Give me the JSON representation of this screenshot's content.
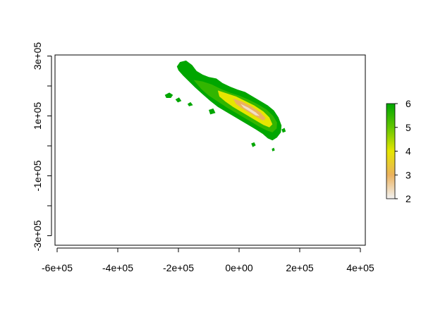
{
  "chart_data": {
    "type": "heatmap",
    "title": "",
    "xlabel": "",
    "ylabel": "",
    "x_ticks": [
      "-6e+05",
      "-4e+05",
      "-2e+05",
      "0e+00",
      "2e+05",
      "4e+05"
    ],
    "x_tick_values": [
      -600000,
      -400000,
      -200000,
      0,
      200000,
      400000
    ],
    "y_ticks": [
      "-3e+05",
      "-1e+05",
      "1e+05",
      "3e+05"
    ],
    "y_tick_values": [
      -300000,
      -100000,
      100000,
      300000
    ],
    "y_minor_tick_values": [
      -200000,
      0,
      200000
    ],
    "xlim": [
      -600000,
      420000
    ],
    "ylim": [
      -320000,
      310000
    ],
    "grid": false,
    "legend": {
      "placement": "right",
      "ticks": [
        "2",
        "3",
        "4",
        "5",
        "6"
      ],
      "tick_values": [
        2,
        3,
        4,
        5,
        6
      ],
      "range": [
        2,
        6
      ],
      "colors": [
        "#F2F2F2",
        "#EBB25E",
        "#E6E600",
        "#63C600",
        "#00A600"
      ]
    },
    "colors": {
      "high": "#00A600",
      "upper": "#3DB800",
      "mid": "#CDD400",
      "low": "#E8B968",
      "lowest": "#F0CFC0"
    },
    "regions": [
      {
        "level": 6,
        "polygon": [
          [
            -205000,
            265000
          ],
          [
            -195000,
            280000
          ],
          [
            -175000,
            285000
          ],
          [
            -155000,
            270000
          ],
          [
            -140000,
            250000
          ],
          [
            -120000,
            238000
          ],
          [
            -100000,
            230000
          ],
          [
            -75000,
            225000
          ],
          [
            -55000,
            210000
          ],
          [
            -30000,
            198000
          ],
          [
            -5000,
            188000
          ],
          [
            20000,
            180000
          ],
          [
            45000,
            165000
          ],
          [
            70000,
            150000
          ],
          [
            95000,
            135000
          ],
          [
            115000,
            118000
          ],
          [
            130000,
            95000
          ],
          [
            140000,
            68000
          ],
          [
            138000,
            45000
          ],
          [
            125000,
            28000
          ],
          [
            110000,
            18000
          ],
          [
            95000,
            25000
          ],
          [
            78000,
            40000
          ],
          [
            55000,
            55000
          ],
          [
            30000,
            70000
          ],
          [
            5000,
            85000
          ],
          [
            -20000,
            100000
          ],
          [
            -45000,
            115000
          ],
          [
            -70000,
            130000
          ],
          [
            -95000,
            150000
          ],
          [
            -120000,
            172000
          ],
          [
            -145000,
            195000
          ],
          [
            -165000,
            215000
          ],
          [
            -185000,
            235000
          ],
          [
            -200000,
            252000
          ]
        ]
      },
      {
        "level": 5.5,
        "polygon": [
          [
            -150000,
            220000
          ],
          [
            -120000,
            215000
          ],
          [
            -90000,
            205000
          ],
          [
            -60000,
            190000
          ],
          [
            -30000,
            178000
          ],
          [
            0,
            168000
          ],
          [
            30000,
            155000
          ],
          [
            60000,
            140000
          ],
          [
            90000,
            122000
          ],
          [
            112000,
            100000
          ],
          [
            125000,
            78000
          ],
          [
            124000,
            58000
          ],
          [
            110000,
            45000
          ],
          [
            90000,
            52000
          ],
          [
            65000,
            65000
          ],
          [
            40000,
            80000
          ],
          [
            15000,
            95000
          ],
          [
            -10000,
            110000
          ],
          [
            -40000,
            128000
          ],
          [
            -70000,
            148000
          ],
          [
            -100000,
            168000
          ],
          [
            -125000,
            190000
          ]
        ]
      },
      {
        "level": 4,
        "polygon": [
          [
            -70000,
            185000
          ],
          [
            -40000,
            175000
          ],
          [
            -10000,
            165000
          ],
          [
            20000,
            150000
          ],
          [
            50000,
            135000
          ],
          [
            80000,
            115000
          ],
          [
            100000,
            95000
          ],
          [
            110000,
            72000
          ],
          [
            100000,
            62000
          ],
          [
            80000,
            70000
          ],
          [
            55000,
            85000
          ],
          [
            30000,
            100000
          ],
          [
            5000,
            115000
          ],
          [
            -20000,
            130000
          ],
          [
            -45000,
            148000
          ],
          [
            -65000,
            165000
          ]
        ]
      },
      {
        "level": 3,
        "polygon": [
          [
            -20000,
            158000
          ],
          [
            10000,
            148000
          ],
          [
            40000,
            132000
          ],
          [
            70000,
            112000
          ],
          [
            88000,
            92000
          ],
          [
            80000,
            84000
          ],
          [
            60000,
            95000
          ],
          [
            35000,
            110000
          ],
          [
            10000,
            125000
          ],
          [
            -10000,
            140000
          ]
        ]
      },
      {
        "level": 2.3,
        "polygon": [
          [
            5000,
            140000
          ],
          [
            30000,
            128000
          ],
          [
            55000,
            112000
          ],
          [
            68000,
            100000
          ],
          [
            55000,
            102000
          ],
          [
            35000,
            115000
          ],
          [
            15000,
            128000
          ]
        ]
      },
      {
        "level": 6,
        "polygon": [
          [
            -245000,
            170000
          ],
          [
            -230000,
            178000
          ],
          [
            -218000,
            170000
          ],
          [
            -225000,
            160000
          ],
          [
            -240000,
            160000
          ]
        ]
      },
      {
        "level": 6,
        "polygon": [
          [
            -210000,
            155000
          ],
          [
            -198000,
            162000
          ],
          [
            -190000,
            150000
          ],
          [
            -202000,
            145000
          ]
        ]
      },
      {
        "level": 6,
        "polygon": [
          [
            -170000,
            140000
          ],
          [
            -160000,
            146000
          ],
          [
            -152000,
            136000
          ],
          [
            -165000,
            132000
          ]
        ]
      },
      {
        "level": 6,
        "polygon": [
          [
            -100000,
            120000
          ],
          [
            -85000,
            125000
          ],
          [
            -78000,
            110000
          ],
          [
            -95000,
            105000
          ]
        ]
      },
      {
        "level": 6,
        "polygon": [
          [
            40000,
            8000
          ],
          [
            50000,
            12000
          ],
          [
            55000,
            2000
          ],
          [
            45000,
            -4000
          ]
        ]
      },
      {
        "level": 6,
        "polygon": [
          [
            108000,
            -10000
          ],
          [
            115000,
            -6000
          ],
          [
            118000,
            -15000
          ],
          [
            110000,
            -18000
          ]
        ]
      },
      {
        "level": 6,
        "polygon": [
          [
            140000,
            55000
          ],
          [
            150000,
            60000
          ],
          [
            154000,
            48000
          ],
          [
            144000,
            44000
          ]
        ]
      }
    ]
  }
}
